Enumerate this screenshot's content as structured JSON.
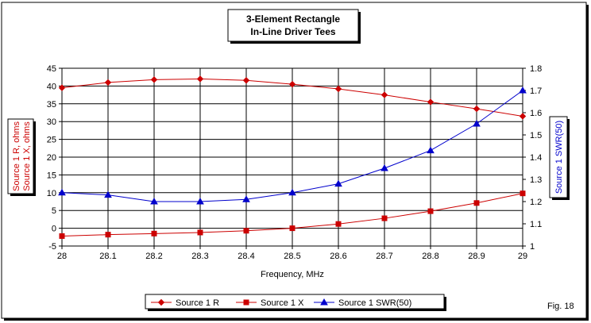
{
  "chart_data": {
    "type": "line",
    "title_line1": "3-Element Rectangle",
    "title_line2": "In-Line Driver Tees",
    "xlabel": "Frequency, MHz",
    "ylabel_left_line1": "Source 1 R,  ohms",
    "ylabel_left_line2": "Source 1 X,  ohms",
    "ylabel_right": "Source 1 SWR(50)",
    "fig_label": "Fig. 18",
    "x": [
      28,
      28.1,
      28.2,
      28.3,
      28.4,
      28.5,
      28.6,
      28.7,
      28.8,
      28.9,
      29
    ],
    "x_tick_labels": [
      "28",
      "28.1",
      "28.2",
      "28.3",
      "28.4",
      "28.5",
      "28.6",
      "28.7",
      "28.8",
      "28.9",
      "29"
    ],
    "xlim": [
      28,
      29
    ],
    "ylim_left": [
      -5,
      45
    ],
    "y_ticks_left": [
      45,
      40,
      35,
      30,
      25,
      20,
      15,
      10,
      5,
      0,
      -5
    ],
    "ylim_right": [
      1,
      1.8
    ],
    "y_ticks_right": [
      "1.8",
      "1.7",
      "1.6",
      "1.5",
      "1.4",
      "1.3",
      "1.2",
      "1.1",
      "1"
    ],
    "grid": true,
    "legend_position": "bottom",
    "series": [
      {
        "name": "Source 1 R",
        "axis": "left",
        "marker": "diamond",
        "color": "#cc0000",
        "values": [
          39.5,
          41,
          41.8,
          42,
          41.6,
          40.5,
          39.2,
          37.5,
          35.5,
          33.6,
          31.5
        ]
      },
      {
        "name": "Source 1 X",
        "axis": "left",
        "marker": "square",
        "color": "#cc0000",
        "values": [
          -2.2,
          -1.8,
          -1.5,
          -1.2,
          -0.7,
          0,
          1.2,
          2.8,
          4.8,
          7.1,
          9.8
        ]
      },
      {
        "name": "Source 1 SWR(50)",
        "axis": "right",
        "marker": "triangle",
        "color": "#0000cc",
        "values": [
          1.24,
          1.23,
          1.2,
          1.2,
          1.21,
          1.24,
          1.28,
          1.35,
          1.43,
          1.55,
          1.7
        ]
      }
    ]
  }
}
